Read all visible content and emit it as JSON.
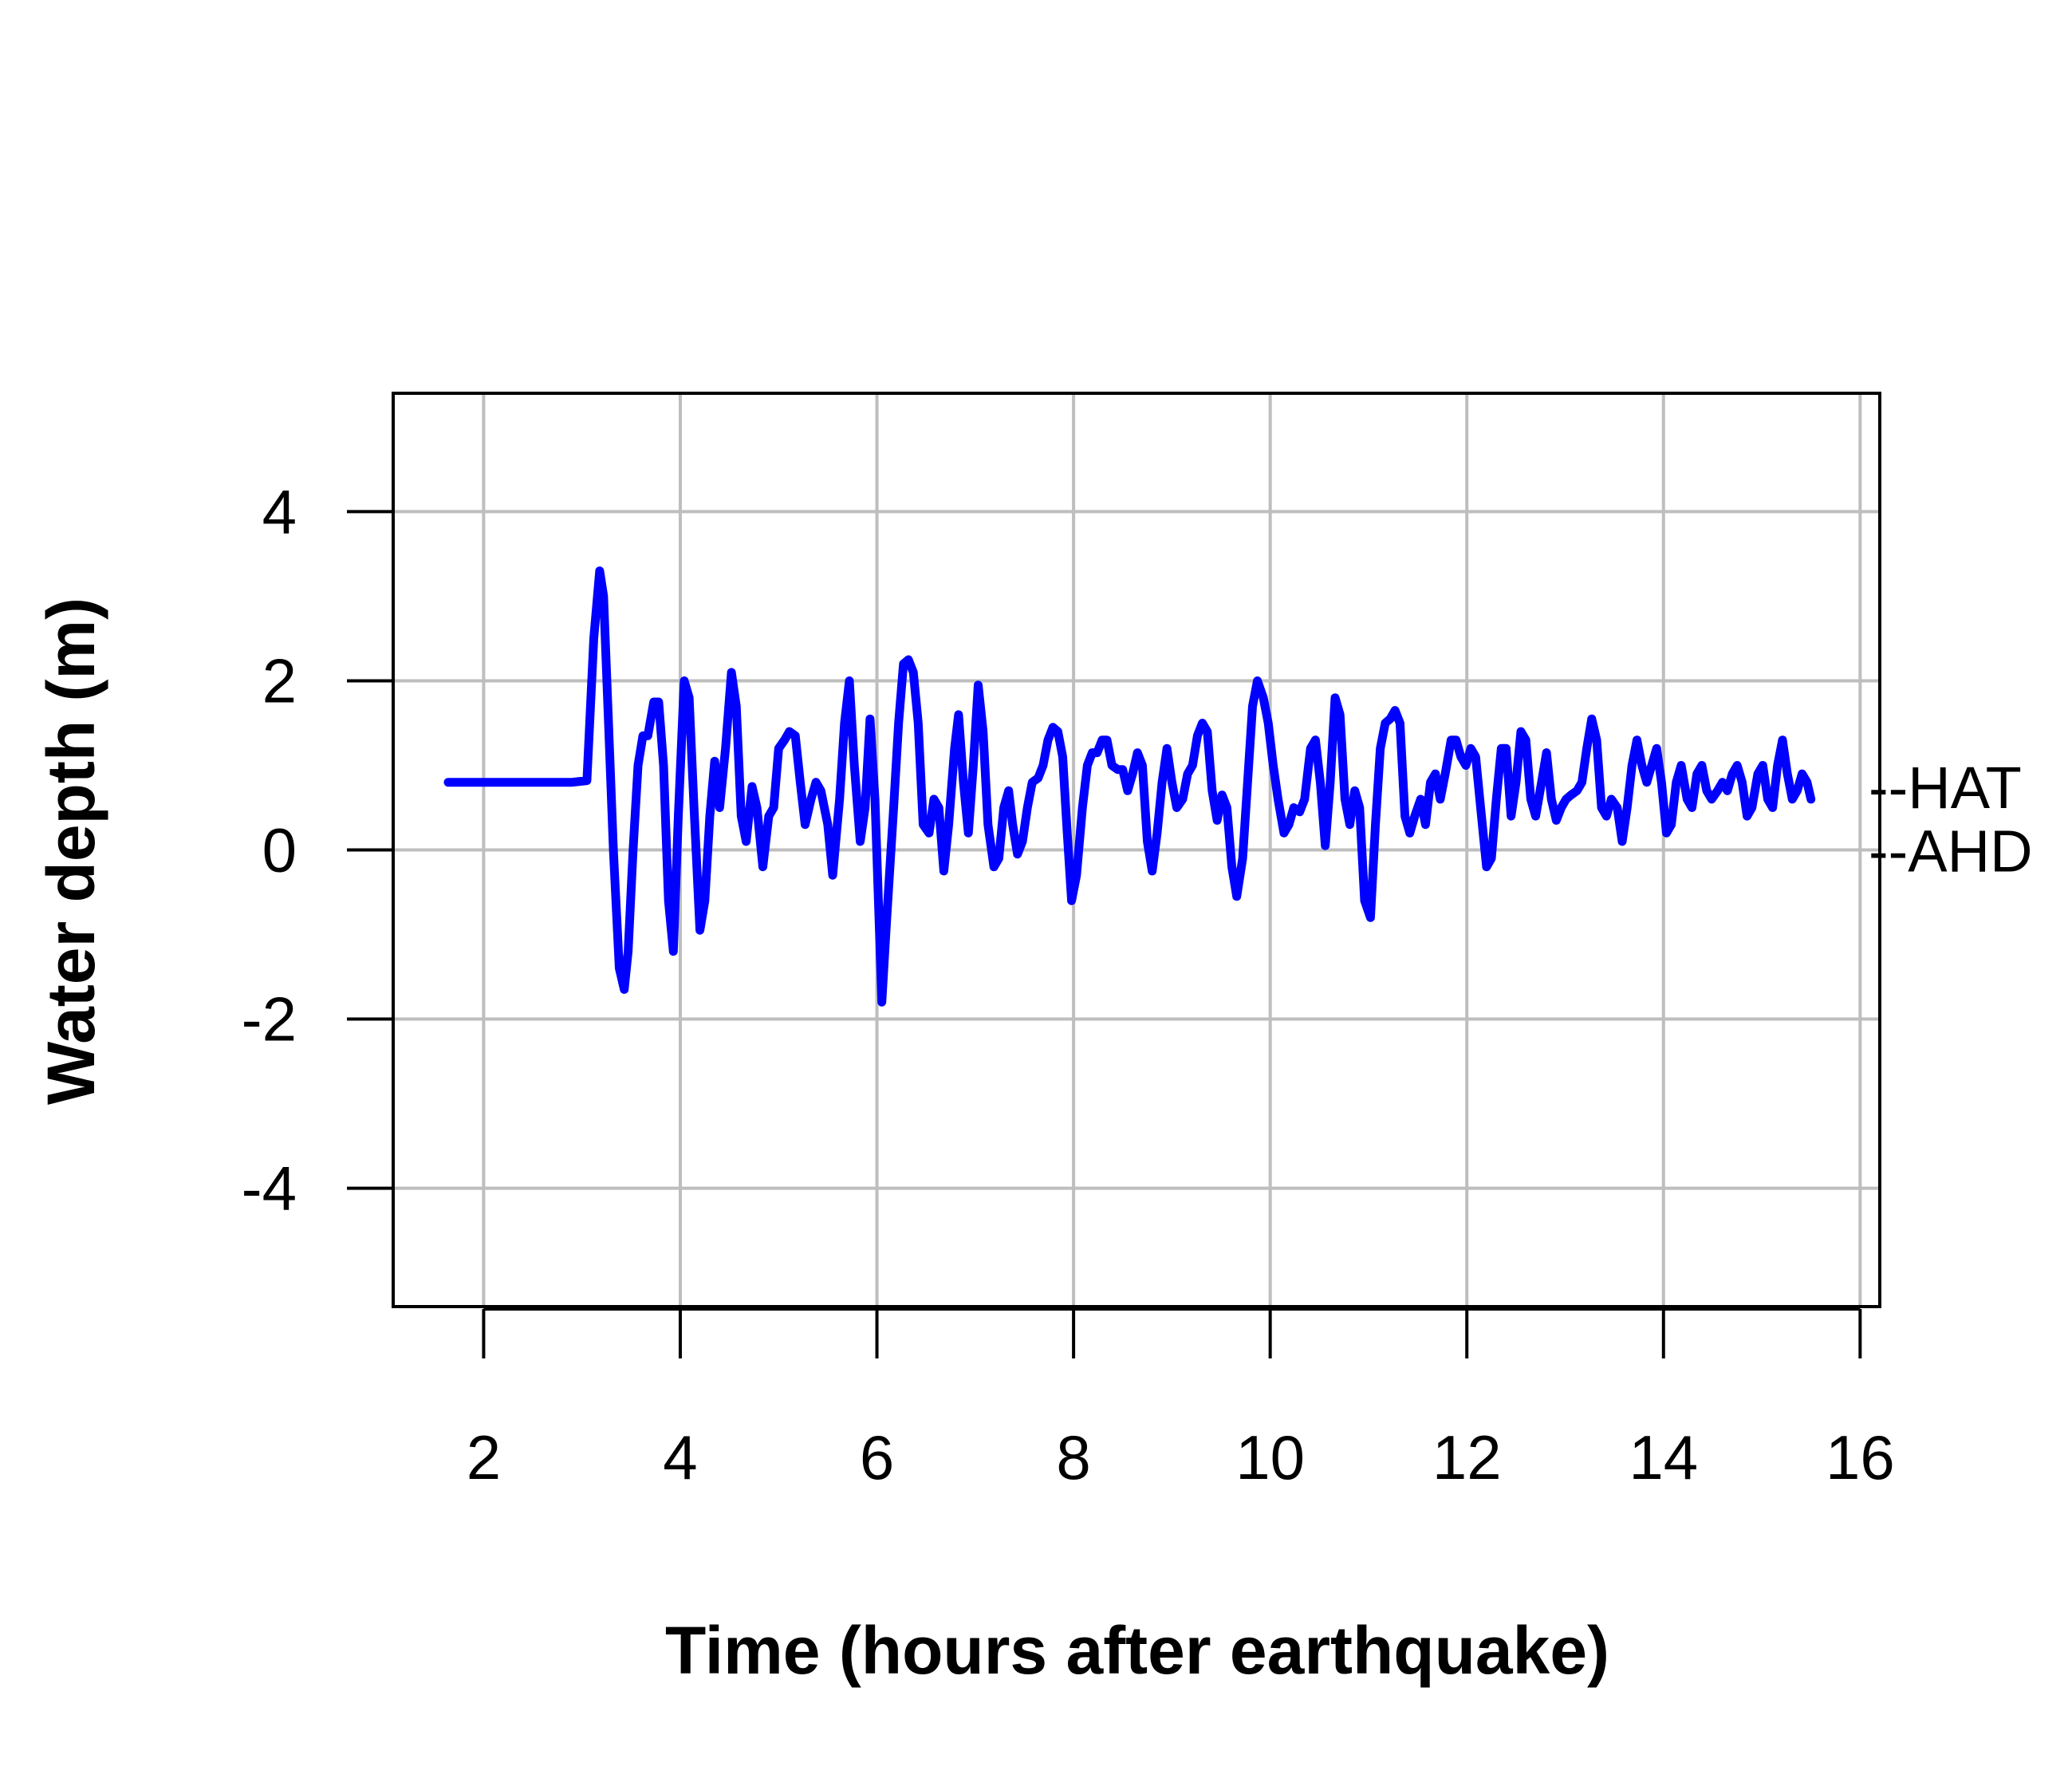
{
  "chart_data": {
    "type": "line",
    "title": "",
    "xlabel": "Time (hours after earthquake)",
    "ylabel": "Water depth (m)",
    "xlim": [
      1.08,
      16.2
    ],
    "ylim": [
      -5.4,
      5.4
    ],
    "grid": true,
    "x_ticks": [
      2,
      4,
      6,
      8,
      10,
      12,
      14,
      16
    ],
    "x_tick_labels": [
      "2",
      "4",
      "6",
      "8",
      "10",
      "12",
      "14",
      "16"
    ],
    "y_ticks": [
      -4,
      -2,
      0,
      2,
      4
    ],
    "y_tick_labels": [
      "-4",
      "-2",
      "0",
      "2",
      "4"
    ],
    "reference_levels": [
      {
        "label": "--HAT",
        "value": 0.75
      },
      {
        "label": "--AHD",
        "value": 0.0
      }
    ],
    "series": [
      {
        "color": "#0000ff",
        "points": [
          [
            1.64,
            0.8
          ],
          [
            2.0,
            0.8
          ],
          [
            2.5,
            0.8
          ],
          [
            2.9,
            0.8
          ],
          [
            3.05,
            0.82
          ],
          [
            3.12,
            2.5
          ],
          [
            3.18,
            3.3
          ],
          [
            3.22,
            3.0
          ],
          [
            3.27,
            1.5
          ],
          [
            3.32,
            0.0
          ],
          [
            3.38,
            -1.4
          ],
          [
            3.43,
            -1.65
          ],
          [
            3.47,
            -1.2
          ],
          [
            3.52,
            0.0
          ],
          [
            3.57,
            1.0
          ],
          [
            3.62,
            1.35
          ],
          [
            3.67,
            1.35
          ],
          [
            3.73,
            1.75
          ],
          [
            3.78,
            1.75
          ],
          [
            3.83,
            1.0
          ],
          [
            3.88,
            -0.6
          ],
          [
            3.93,
            -1.2
          ],
          [
            3.98,
            0.4
          ],
          [
            4.04,
            2.0
          ],
          [
            4.09,
            1.8
          ],
          [
            4.14,
            0.5
          ],
          [
            4.2,
            -0.95
          ],
          [
            4.25,
            -0.6
          ],
          [
            4.3,
            0.4
          ],
          [
            4.35,
            1.05
          ],
          [
            4.4,
            0.5
          ],
          [
            4.46,
            1.2
          ],
          [
            4.52,
            2.1
          ],
          [
            4.57,
            1.7
          ],
          [
            4.62,
            0.4
          ],
          [
            4.67,
            0.1
          ],
          [
            4.73,
            0.75
          ],
          [
            4.78,
            0.5
          ],
          [
            4.84,
            -0.2
          ],
          [
            4.9,
            0.4
          ],
          [
            4.95,
            0.5
          ],
          [
            5.0,
            1.2
          ],
          [
            5.06,
            1.3
          ],
          [
            5.11,
            1.4
          ],
          [
            5.17,
            1.35
          ],
          [
            5.22,
            0.8
          ],
          [
            5.27,
            0.3
          ],
          [
            5.33,
            0.6
          ],
          [
            5.38,
            0.8
          ],
          [
            5.43,
            0.7
          ],
          [
            5.5,
            0.3
          ],
          [
            5.55,
            -0.3
          ],
          [
            5.62,
            0.6
          ],
          [
            5.67,
            1.5
          ],
          [
            5.72,
            2.0
          ],
          [
            5.77,
            1.0
          ],
          [
            5.83,
            0.1
          ],
          [
            5.88,
            0.5
          ],
          [
            5.93,
            1.55
          ],
          [
            5.98,
            0.6
          ],
          [
            6.05,
            -1.8
          ],
          [
            6.1,
            -0.8
          ],
          [
            6.17,
            0.5
          ],
          [
            6.22,
            1.5
          ],
          [
            6.27,
            2.2
          ],
          [
            6.32,
            2.25
          ],
          [
            6.37,
            2.1
          ],
          [
            6.42,
            1.5
          ],
          [
            6.47,
            0.3
          ],
          [
            6.53,
            0.2
          ],
          [
            6.58,
            0.6
          ],
          [
            6.63,
            0.5
          ],
          [
            6.68,
            -0.25
          ],
          [
            6.73,
            0.3
          ],
          [
            6.79,
            1.2
          ],
          [
            6.83,
            1.6
          ],
          [
            6.88,
            0.8
          ],
          [
            6.93,
            0.2
          ],
          [
            6.98,
            1.0
          ],
          [
            7.03,
            1.95
          ],
          [
            7.08,
            1.4
          ],
          [
            7.13,
            0.3
          ],
          [
            7.19,
            -0.2
          ],
          [
            7.24,
            -0.1
          ],
          [
            7.29,
            0.5
          ],
          [
            7.34,
            0.7
          ],
          [
            7.38,
            0.3
          ],
          [
            7.43,
            -0.05
          ],
          [
            7.48,
            0.1
          ],
          [
            7.53,
            0.5
          ],
          [
            7.58,
            0.8
          ],
          [
            7.64,
            0.85
          ],
          [
            7.69,
            1.0
          ],
          [
            7.74,
            1.3
          ],
          [
            7.79,
            1.45
          ],
          [
            7.84,
            1.4
          ],
          [
            7.89,
            1.1
          ],
          [
            7.93,
            0.3
          ],
          [
            7.98,
            -0.6
          ],
          [
            8.03,
            -0.3
          ],
          [
            8.09,
            0.5
          ],
          [
            8.14,
            1.0
          ],
          [
            8.19,
            1.15
          ],
          [
            8.24,
            1.15
          ],
          [
            8.29,
            1.3
          ],
          [
            8.34,
            1.3
          ],
          [
            8.39,
            1.0
          ],
          [
            8.45,
            0.95
          ],
          [
            8.5,
            0.95
          ],
          [
            8.55,
            0.7
          ],
          [
            8.6,
            0.9
          ],
          [
            8.65,
            1.15
          ],
          [
            8.7,
            1.0
          ],
          [
            8.75,
            0.1
          ],
          [
            8.8,
            -0.25
          ],
          [
            8.85,
            0.2
          ],
          [
            8.9,
            0.8
          ],
          [
            8.95,
            1.2
          ],
          [
            9.0,
            0.8
          ],
          [
            9.05,
            0.5
          ],
          [
            9.11,
            0.6
          ],
          [
            9.16,
            0.9
          ],
          [
            9.21,
            1.0
          ],
          [
            9.26,
            1.35
          ],
          [
            9.31,
            1.5
          ],
          [
            9.36,
            1.4
          ],
          [
            9.41,
            0.7
          ],
          [
            9.46,
            0.35
          ],
          [
            9.51,
            0.65
          ],
          [
            9.56,
            0.5
          ],
          [
            9.61,
            -0.2
          ],
          [
            9.66,
            -0.55
          ],
          [
            9.72,
            -0.1
          ],
          [
            9.77,
            0.8
          ],
          [
            9.82,
            1.7
          ],
          [
            9.87,
            2.0
          ],
          [
            9.93,
            1.8
          ],
          [
            9.98,
            1.5
          ],
          [
            10.03,
            1.0
          ],
          [
            10.08,
            0.6
          ],
          [
            10.14,
            0.2
          ],
          [
            10.19,
            0.3
          ],
          [
            10.24,
            0.5
          ],
          [
            10.3,
            0.45
          ],
          [
            10.35,
            0.6
          ],
          [
            10.41,
            1.2
          ],
          [
            10.46,
            1.3
          ],
          [
            10.51,
            0.8
          ],
          [
            10.56,
            0.05
          ],
          [
            10.61,
            0.8
          ],
          [
            10.66,
            1.8
          ],
          [
            10.71,
            1.6
          ],
          [
            10.76,
            0.6
          ],
          [
            10.81,
            0.3
          ],
          [
            10.86,
            0.7
          ],
          [
            10.91,
            0.5
          ],
          [
            10.96,
            -0.6
          ],
          [
            11.02,
            -0.8
          ],
          [
            11.07,
            0.3
          ],
          [
            11.12,
            1.2
          ],
          [
            11.17,
            1.5
          ],
          [
            11.22,
            1.55
          ],
          [
            11.27,
            1.65
          ],
          [
            11.32,
            1.5
          ],
          [
            11.37,
            0.4
          ],
          [
            11.42,
            0.2
          ],
          [
            11.47,
            0.4
          ],
          [
            11.53,
            0.6
          ],
          [
            11.58,
            0.3
          ],
          [
            11.63,
            0.8
          ],
          [
            11.68,
            0.9
          ],
          [
            11.73,
            0.6
          ],
          [
            11.78,
            0.9
          ],
          [
            11.84,
            1.3
          ],
          [
            11.89,
            1.3
          ],
          [
            11.94,
            1.1
          ],
          [
            11.99,
            1.0
          ],
          [
            12.04,
            1.2
          ],
          [
            12.09,
            1.1
          ],
          [
            12.14,
            0.5
          ],
          [
            12.2,
            -0.2
          ],
          [
            12.25,
            -0.1
          ],
          [
            12.3,
            0.6
          ],
          [
            12.35,
            1.2
          ],
          [
            12.4,
            1.2
          ],
          [
            12.45,
            0.4
          ],
          [
            12.5,
            0.8
          ],
          [
            12.55,
            1.4
          ],
          [
            12.6,
            1.3
          ],
          [
            12.65,
            0.6
          ],
          [
            12.7,
            0.4
          ],
          [
            12.76,
            0.8
          ],
          [
            12.81,
            1.15
          ],
          [
            12.86,
            0.6
          ],
          [
            12.91,
            0.35
          ],
          [
            12.96,
            0.5
          ],
          [
            13.01,
            0.6
          ],
          [
            13.06,
            0.65
          ],
          [
            13.12,
            0.7
          ],
          [
            13.17,
            0.8
          ],
          [
            13.22,
            1.2
          ],
          [
            13.27,
            1.55
          ],
          [
            13.32,
            1.3
          ],
          [
            13.37,
            0.5
          ],
          [
            13.42,
            0.4
          ],
          [
            13.47,
            0.6
          ],
          [
            13.53,
            0.5
          ],
          [
            13.58,
            0.1
          ],
          [
            13.63,
            0.5
          ],
          [
            13.68,
            1.0
          ],
          [
            13.73,
            1.3
          ],
          [
            13.78,
            1.0
          ],
          [
            13.83,
            0.8
          ],
          [
            13.88,
            1.0
          ],
          [
            13.93,
            1.2
          ],
          [
            13.98,
            0.8
          ],
          [
            14.03,
            0.2
          ],
          [
            14.08,
            0.3
          ],
          [
            14.13,
            0.8
          ],
          [
            14.18,
            1.0
          ],
          [
            14.24,
            0.6
          ],
          [
            14.29,
            0.5
          ],
          [
            14.34,
            0.9
          ],
          [
            14.39,
            1.0
          ],
          [
            14.44,
            0.7
          ],
          [
            14.49,
            0.6
          ],
          [
            14.55,
            0.7
          ],
          [
            14.6,
            0.8
          ],
          [
            14.65,
            0.7
          ],
          [
            14.7,
            0.9
          ],
          [
            14.75,
            1.0
          ],
          [
            14.8,
            0.8
          ],
          [
            14.85,
            0.4
          ],
          [
            14.9,
            0.5
          ],
          [
            14.96,
            0.9
          ],
          [
            15.01,
            1.0
          ],
          [
            15.06,
            0.6
          ],
          [
            15.11,
            0.5
          ],
          [
            15.16,
            1.0
          ],
          [
            15.21,
            1.3
          ],
          [
            15.26,
            0.9
          ],
          [
            15.31,
            0.6
          ],
          [
            15.36,
            0.7
          ],
          [
            15.41,
            0.9
          ],
          [
            15.46,
            0.8
          ],
          [
            15.5,
            0.6
          ]
        ]
      }
    ]
  }
}
